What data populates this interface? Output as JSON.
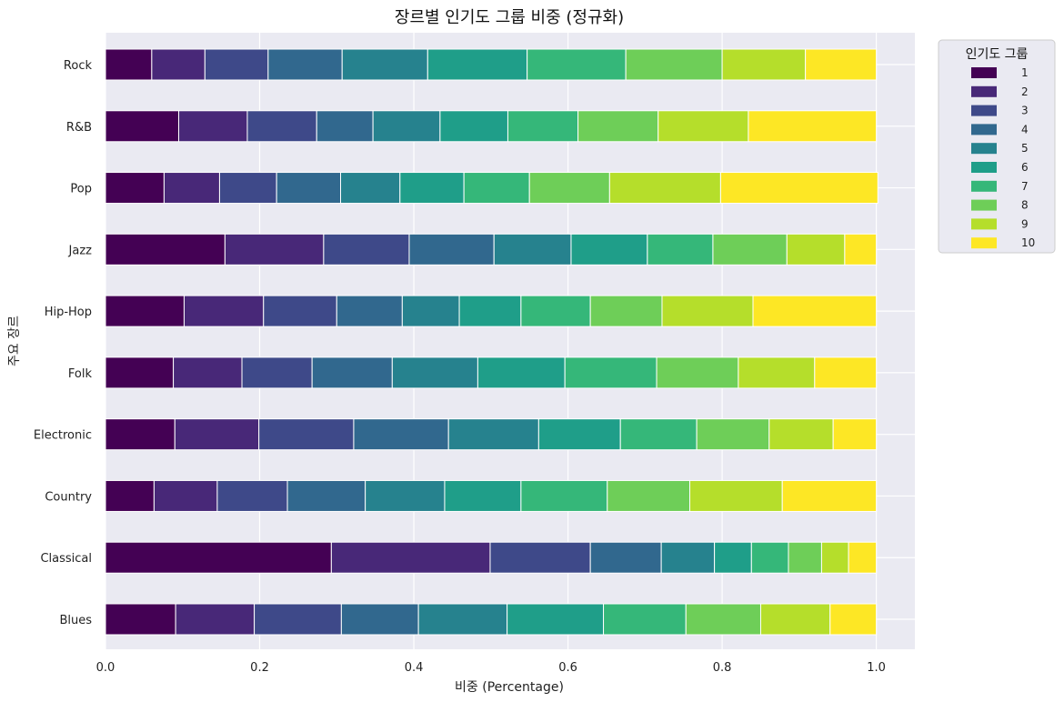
{
  "chart_data": {
    "type": "bar",
    "orientation": "horizontal",
    "stacked": true,
    "title": "장르별 인기도 그룹 비중 (정규화)",
    "xlabel": "비중 (Percentage)",
    "ylabel": "주요 장르",
    "xlim": [
      0,
      1.05
    ],
    "xticks": [
      "0.0",
      "0.2",
      "0.4",
      "0.6",
      "0.8",
      "1.0"
    ],
    "grid": true,
    "legend": {
      "title": "인기도 그룹",
      "placement": "upper-right-outside"
    },
    "categories": [
      "Rock",
      "R&B",
      "Pop",
      "Jazz",
      "Hip-Hop",
      "Folk",
      "Electronic",
      "Country",
      "Classical",
      "Blues"
    ],
    "series": [
      {
        "name": "1",
        "color": "#440154",
        "values": [
          0.06,
          0.095,
          0.076,
          0.155,
          0.102,
          0.088,
          0.09,
          0.063,
          0.293,
          0.091
        ]
      },
      {
        "name": "2",
        "color": "#482878",
        "values": [
          0.069,
          0.089,
          0.072,
          0.128,
          0.103,
          0.089,
          0.109,
          0.082,
          0.206,
          0.102
        ]
      },
      {
        "name": "3",
        "color": "#3e4989",
        "values": [
          0.082,
          0.09,
          0.074,
          0.111,
          0.095,
          0.091,
          0.123,
          0.091,
          0.13,
          0.113
        ]
      },
      {
        "name": "4",
        "color": "#31688e",
        "values": [
          0.096,
          0.073,
          0.083,
          0.11,
          0.085,
          0.104,
          0.123,
          0.101,
          0.092,
          0.1
        ]
      },
      {
        "name": "5",
        "color": "#26828e",
        "values": [
          0.111,
          0.087,
          0.077,
          0.1,
          0.074,
          0.111,
          0.117,
          0.103,
          0.069,
          0.115
        ]
      },
      {
        "name": "6",
        "color": "#1f9e89",
        "values": [
          0.129,
          0.088,
          0.083,
          0.099,
          0.08,
          0.113,
          0.106,
          0.099,
          0.048,
          0.125
        ]
      },
      {
        "name": "7",
        "color": "#35b779",
        "values": [
          0.128,
          0.091,
          0.085,
          0.085,
          0.09,
          0.119,
          0.099,
          0.112,
          0.048,
          0.107
        ]
      },
      {
        "name": "8",
        "color": "#6ece58",
        "values": [
          0.125,
          0.104,
          0.104,
          0.096,
          0.093,
          0.106,
          0.094,
          0.107,
          0.043,
          0.097
        ]
      },
      {
        "name": "9",
        "color": "#b5de2b",
        "values": [
          0.108,
          0.117,
          0.144,
          0.075,
          0.118,
          0.099,
          0.083,
          0.12,
          0.035,
          0.09
        ]
      },
      {
        "name": "10",
        "color": "#fde725",
        "values": [
          0.092,
          0.166,
          0.204,
          0.041,
          0.16,
          0.08,
          0.056,
          0.122,
          0.036,
          0.06
        ]
      }
    ]
  }
}
